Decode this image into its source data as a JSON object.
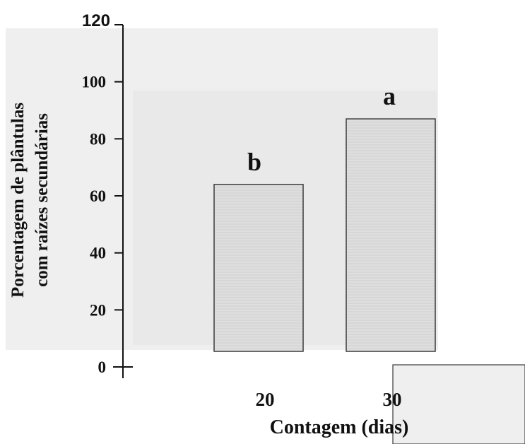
{
  "chart_data": {
    "type": "bar",
    "categories": [
      "20",
      "30"
    ],
    "values": [
      64,
      87
    ],
    "significance_letters": [
      "b",
      "a"
    ],
    "title": "",
    "xlabel": "Contagem (dias)",
    "ylabel_lines": [
      "Porcentagem de plântulas",
      "com raízes secundárias"
    ],
    "ylim": [
      0,
      120
    ],
    "yticks": [
      0,
      20,
      40,
      60,
      80,
      100,
      120
    ],
    "grid": false,
    "legend": "none",
    "colors": {
      "bar_fill": "#e0e0e0",
      "bar_stroke": "#3a3a3a",
      "axis": "#111111",
      "background_band": "#efefef"
    }
  }
}
